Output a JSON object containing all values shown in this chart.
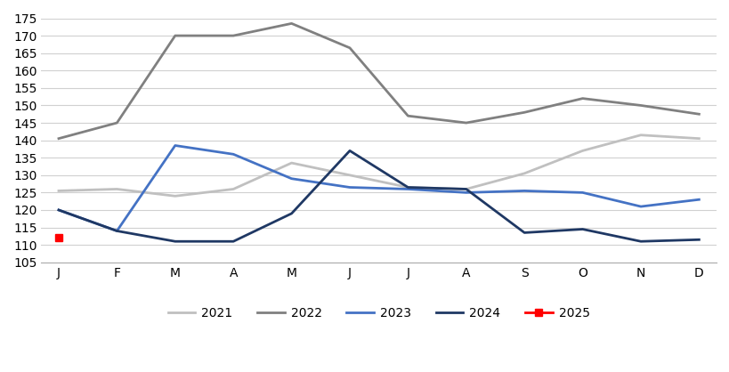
{
  "months": [
    "J",
    "F",
    "M",
    "A",
    "M",
    "J",
    "J",
    "A",
    "S",
    "O",
    "N",
    "D"
  ],
  "series": {
    "2021": [
      125.5,
      126.0,
      124.0,
      126.0,
      133.5,
      130.0,
      126.5,
      126.0,
      130.5,
      137.0,
      141.5,
      140.5
    ],
    "2022": [
      140.5,
      145.0,
      170.0,
      170.0,
      173.5,
      166.5,
      147.0,
      145.0,
      148.0,
      152.0,
      150.0,
      147.5
    ],
    "2023": [
      120.0,
      114.0,
      138.5,
      136.0,
      129.0,
      126.5,
      126.0,
      125.0,
      125.5,
      125.0,
      121.0,
      123.0
    ],
    "2024": [
      120.0,
      114.0,
      111.0,
      111.0,
      119.0,
      137.0,
      126.5,
      126.0,
      113.5,
      114.5,
      111.0,
      111.5
    ],
    "2025": [
      112.0,
      null,
      null,
      null,
      null,
      null,
      null,
      null,
      null,
      null,
      null,
      null
    ]
  },
  "colors": {
    "2021": "#c0c0c0",
    "2022": "#808080",
    "2023": "#4472c4",
    "2024": "#1f3864",
    "2025": "#ff0000"
  },
  "ylim": [
    105,
    175
  ],
  "yticks": [
    105,
    110,
    115,
    120,
    125,
    130,
    135,
    140,
    145,
    150,
    155,
    160,
    165,
    170,
    175
  ],
  "background_color": "#ffffff",
  "grid_color": "#d0d0d0"
}
